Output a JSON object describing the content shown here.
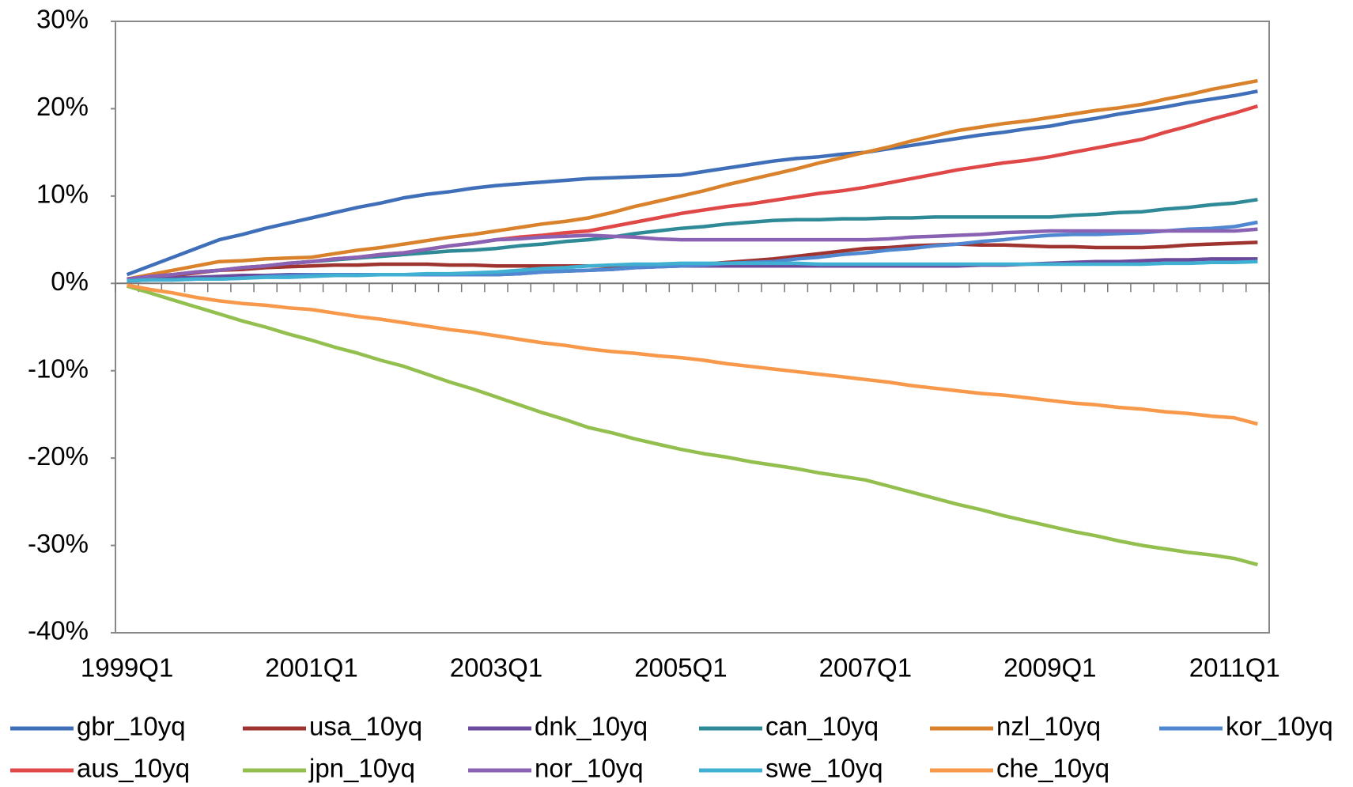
{
  "chart_data": {
    "type": "line",
    "categories": [
      "1999Q1",
      null,
      null,
      null,
      null,
      null,
      null,
      null,
      "2001Q1",
      null,
      null,
      null,
      null,
      null,
      null,
      null,
      "2003Q1",
      null,
      null,
      null,
      null,
      null,
      null,
      null,
      "2005Q1",
      null,
      null,
      null,
      null,
      null,
      null,
      null,
      "2007Q1",
      null,
      null,
      null,
      null,
      null,
      null,
      null,
      "2009Q1",
      null,
      null,
      null,
      null,
      null,
      null,
      null,
      "2011Q1",
      null
    ],
    "ylim": [
      -40,
      30
    ],
    "yticks": [
      {
        "value": 30,
        "label": "30%"
      },
      {
        "value": 20,
        "label": "20%"
      },
      {
        "value": 10,
        "label": "10%"
      },
      {
        "value": 0,
        "label": "0%"
      },
      {
        "value": -10,
        "label": "-10%"
      },
      {
        "value": -20,
        "label": "-20%"
      },
      {
        "value": -30,
        "label": "-30%"
      },
      {
        "value": -40,
        "label": "-40%"
      }
    ],
    "grid": false,
    "legend": "bottom",
    "series": [
      {
        "name": "gbr_10yq",
        "color": "#3f6fb8",
        "values": [
          1,
          2,
          3,
          4,
          5,
          5.6,
          6.3,
          6.9,
          7.5,
          8.1,
          8.7,
          9.2,
          9.8,
          10.2,
          10.5,
          10.9,
          11.2,
          11.4,
          11.6,
          11.8,
          12,
          12.1,
          12.2,
          12.3,
          12.4,
          12.8,
          13.2,
          13.6,
          14,
          14.3,
          14.5,
          14.8,
          15,
          15.4,
          15.8,
          16.2,
          16.6,
          17,
          17.3,
          17.7,
          18,
          18.5,
          18.9,
          19.4,
          19.8,
          20.2,
          20.7,
          21.1,
          21.5,
          22
        ]
      },
      {
        "name": "usa_10yq",
        "color": "#9e3330",
        "values": [
          0.3,
          0.6,
          0.9,
          1.2,
          1.5,
          1.6,
          1.8,
          1.9,
          2,
          2.1,
          2.1,
          2.2,
          2.2,
          2.2,
          2.1,
          2.1,
          2,
          2,
          2,
          2,
          2,
          2,
          2,
          2,
          2,
          2.2,
          2.4,
          2.6,
          2.8,
          3.1,
          3.4,
          3.7,
          4,
          4.1,
          4.3,
          4.4,
          4.5,
          4.4,
          4.4,
          4.3,
          4.2,
          4.2,
          4.1,
          4.1,
          4.1,
          4.2,
          4.4,
          4.5,
          4.6,
          4.7
        ]
      },
      {
        "name": "dnk_10yq",
        "color": "#6b4a9c",
        "values": [
          0.3,
          0.4,
          0.6,
          0.7,
          0.8,
          0.9,
          0.9,
          1,
          1,
          1,
          1,
          1,
          1,
          1,
          1,
          1,
          1,
          1.1,
          1.3,
          1.4,
          1.5,
          1.6,
          1.8,
          1.9,
          2,
          2,
          2,
          2,
          2,
          2,
          2,
          2,
          2,
          2,
          2,
          2,
          2,
          2.1,
          2.1,
          2.2,
          2.3,
          2.4,
          2.5,
          2.5,
          2.6,
          2.7,
          2.7,
          2.8,
          2.8,
          2.8
        ]
      },
      {
        "name": "can_10yq",
        "color": "#2f8a97",
        "values": [
          0.5,
          0.8,
          1,
          1.3,
          1.5,
          1.8,
          2,
          2.3,
          2.5,
          2.7,
          2.9,
          3.1,
          3.3,
          3.5,
          3.7,
          3.8,
          4,
          4.3,
          4.5,
          4.8,
          5,
          5.3,
          5.7,
          6,
          6.3,
          6.5,
          6.8,
          7,
          7.2,
          7.3,
          7.3,
          7.4,
          7.4,
          7.5,
          7.5,
          7.6,
          7.6,
          7.6,
          7.6,
          7.6,
          7.6,
          7.8,
          7.9,
          8.1,
          8.2,
          8.5,
          8.7,
          9,
          9.2,
          9.6
        ]
      },
      {
        "name": "nzl_10yq",
        "color": "#d9822b",
        "values": [
          0.5,
          1,
          1.5,
          2,
          2.5,
          2.6,
          2.8,
          2.9,
          3,
          3.4,
          3.8,
          4.1,
          4.5,
          4.9,
          5.3,
          5.6,
          6,
          6.4,
          6.8,
          7.1,
          7.5,
          8.1,
          8.8,
          9.4,
          10,
          10.6,
          11.3,
          11.9,
          12.5,
          13.1,
          13.8,
          14.4,
          15,
          15.6,
          16.3,
          16.9,
          17.5,
          17.9,
          18.3,
          18.6,
          19,
          19.4,
          19.8,
          20.1,
          20.5,
          21.1,
          21.6,
          22.2,
          22.7,
          23.2
        ]
      },
      {
        "name": "kor_10yq",
        "color": "#4f87d0",
        "values": [
          0.3,
          0.4,
          0.4,
          0.5,
          0.5,
          0.6,
          0.8,
          0.9,
          1,
          1,
          1,
          1,
          1,
          1,
          1,
          1,
          1,
          1.1,
          1.3,
          1.4,
          1.5,
          1.6,
          1.8,
          1.9,
          2,
          2.1,
          2.3,
          2.4,
          2.5,
          2.8,
          3,
          3.3,
          3.5,
          3.8,
          4,
          4.3,
          4.5,
          4.8,
          5,
          5.3,
          5.5,
          5.6,
          5.6,
          5.7,
          5.8,
          6,
          6.2,
          6.3,
          6.5,
          7
        ]
      },
      {
        "name": "aus_10yq",
        "color": "#e04848",
        "values": [
          0.5,
          0.8,
          1,
          1.3,
          1.5,
          1.8,
          2,
          2.3,
          2.5,
          2.8,
          3,
          3.3,
          3.5,
          3.9,
          4.3,
          4.6,
          5,
          5.3,
          5.5,
          5.8,
          6,
          6.5,
          7,
          7.5,
          8,
          8.4,
          8.8,
          9.1,
          9.5,
          9.9,
          10.3,
          10.6,
          11,
          11.5,
          12,
          12.5,
          13,
          13.4,
          13.8,
          14.1,
          14.5,
          15,
          15.5,
          16,
          16.5,
          17.3,
          18,
          18.8,
          19.5,
          20.3
        ]
      },
      {
        "name": "jpn_10yq",
        "color": "#93bf4f",
        "values": [
          -0.3,
          -1.1,
          -1.9,
          -2.7,
          -3.5,
          -4.3,
          -5,
          -5.8,
          -6.5,
          -7.3,
          -8,
          -8.8,
          -9.5,
          -10.4,
          -11.3,
          -12.1,
          -13,
          -13.9,
          -14.8,
          -15.6,
          -16.5,
          -17.1,
          -17.8,
          -18.4,
          -19,
          -19.5,
          -19.9,
          -20.4,
          -20.8,
          -21.2,
          -21.7,
          -22.1,
          -22.5,
          -23.2,
          -23.9,
          -24.6,
          -25.3,
          -25.9,
          -26.6,
          -27.2,
          -27.8,
          -28.4,
          -28.9,
          -29.5,
          -30,
          -30.4,
          -30.8,
          -31.1,
          -31.5,
          -32.2
        ]
      },
      {
        "name": "nor_10yq",
        "color": "#8a62b3",
        "values": [
          0.5,
          0.8,
          1,
          1.3,
          1.5,
          1.8,
          2,
          2.3,
          2.5,
          2.8,
          3,
          3.3,
          3.5,
          3.9,
          4.3,
          4.6,
          5,
          5.1,
          5.3,
          5.4,
          5.5,
          5.4,
          5.3,
          5.1,
          5,
          5,
          5,
          5,
          5,
          5,
          5,
          5,
          5,
          5.1,
          5.3,
          5.4,
          5.5,
          5.6,
          5.8,
          5.9,
          6,
          6,
          6,
          6,
          6,
          6,
          6,
          6,
          6,
          6.2
        ]
      },
      {
        "name": "swe_10yq",
        "color": "#3fb0d2",
        "values": [
          0.3,
          0.4,
          0.4,
          0.5,
          0.5,
          0.6,
          0.7,
          0.7,
          0.8,
          0.9,
          0.9,
          1,
          1,
          1.1,
          1.1,
          1.2,
          1.3,
          1.5,
          1.7,
          1.8,
          2,
          2.1,
          2.2,
          2.2,
          2.3,
          2.3,
          2.3,
          2.3,
          2.3,
          2.3,
          2.2,
          2.2,
          2.2,
          2.2,
          2.2,
          2.2,
          2.2,
          2.2,
          2.2,
          2.2,
          2.2,
          2.2,
          2.2,
          2.2,
          2.2,
          2.3,
          2.3,
          2.4,
          2.4,
          2.5
        ]
      },
      {
        "name": "che_10yq",
        "color": "#f7984a",
        "values": [
          -0.2,
          -0.7,
          -1.1,
          -1.6,
          -2,
          -2.3,
          -2.5,
          -2.8,
          -3,
          -3.4,
          -3.8,
          -4.1,
          -4.5,
          -4.9,
          -5.3,
          -5.6,
          -6,
          -6.4,
          -6.8,
          -7.1,
          -7.5,
          -7.8,
          -8,
          -8.3,
          -8.5,
          -8.8,
          -9.2,
          -9.5,
          -9.8,
          -10.1,
          -10.4,
          -10.7,
          -11,
          -11.3,
          -11.7,
          -12,
          -12.3,
          -12.6,
          -12.8,
          -13.1,
          -13.4,
          -13.7,
          -13.9,
          -14.2,
          -14.4,
          -14.7,
          -14.9,
          -15.2,
          -15.4,
          -16.1
        ]
      }
    ]
  }
}
